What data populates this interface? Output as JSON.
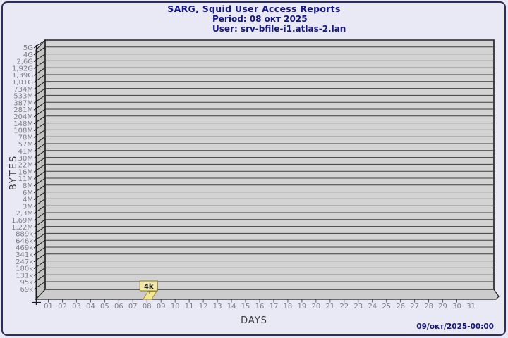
{
  "header": {
    "title": "SARG, Squid User Access Reports",
    "period": "Period: 08 окт 2025",
    "user": "User: srv-bfile-i1.atlas-2.lan"
  },
  "footer": {
    "timestamp": "09/окт/2025-00:00"
  },
  "chart_data": {
    "type": "bar",
    "title": "SARG, Squid User Access Reports",
    "subtitle": [
      "Period: 08 окт 2025",
      "User: srv-bfile-i1.atlas-2.lan"
    ],
    "xlabel": "DAYS",
    "ylabel": "BYTES",
    "y_scale": "log",
    "grid": true,
    "y_tick_labels": [
      "5G",
      "4G",
      "2,6G",
      "1,92G",
      "1,39G",
      "1,01G",
      "734M",
      "533M",
      "387M",
      "281M",
      "204M",
      "148M",
      "108M",
      "78M",
      "57M",
      "41M",
      "30M",
      "22M",
      "16M",
      "11M",
      "8M",
      "6M",
      "4M",
      "3M",
      "2,3M",
      "1,69M",
      "1,22M",
      "889k",
      "646k",
      "469k",
      "341k",
      "247k",
      "180k",
      "131k",
      "95k",
      "69k"
    ],
    "x_tick_labels": [
      "01",
      "02",
      "03",
      "04",
      "05",
      "06",
      "07",
      "08",
      "09",
      "10",
      "11",
      "12",
      "13",
      "14",
      "15",
      "16",
      "17",
      "18",
      "19",
      "20",
      "21",
      "22",
      "23",
      "24",
      "25",
      "26",
      "27",
      "28",
      "29",
      "30",
      "31"
    ],
    "bars": [
      {
        "x": "08",
        "label": "4k"
      }
    ],
    "colors": {
      "background": "#e9e9f6",
      "frame": "#2e2e5e",
      "title_text": "#15158a",
      "plot_fill": "#d3d3d3",
      "wall_fill": "#c4c4c4",
      "floor_fill": "#cccccc",
      "gridline": "#3c3c3c",
      "plot_border": "#1a1a1a",
      "tick_label": "#7d7d84",
      "axis_title": "#38383c",
      "bar_fill": "#f3e795",
      "bar_border": "#a89334",
      "value_box_fill": "#f2e7ab",
      "value_box_border": "#857a26",
      "value_text": "#111100"
    }
  }
}
